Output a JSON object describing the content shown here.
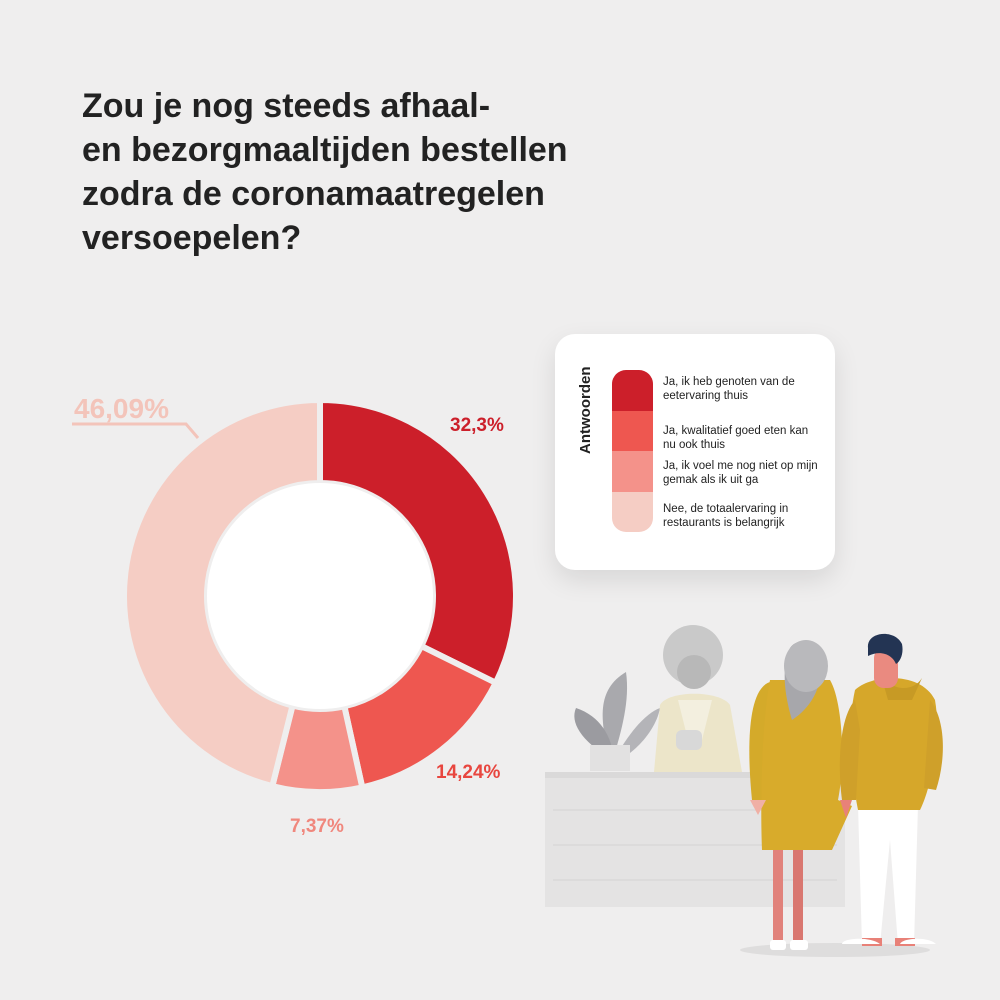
{
  "title_lines": [
    "Zou je nog steeds afhaal-",
    "en bezorgmaaltijden bestellen",
    "zodra de coronamaatregelen",
    "versoepelen?"
  ],
  "legend": {
    "heading": "Antwoorden",
    "items": [
      {
        "text": "Ja, ik heb genoten van de eetervaring thuis",
        "color": "#cc1f2a"
      },
      {
        "text": "Ja, kwalitatief goed eten kan nu ook thuis",
        "color": "#ee5750"
      },
      {
        "text": "Ja, ik voel me nog niet op mijn gemak als ik uit ga",
        "color": "#f4928a"
      },
      {
        "text": "Nee, de totaalervaring in restaurants is belangrijk",
        "color": "#f5cdc4"
      }
    ]
  },
  "chart_data": {
    "type": "pie",
    "variant": "donut",
    "slices": [
      {
        "label": "Ja, ik heb genoten van de eetervaring thuis",
        "value": 32.3,
        "display": "32,3%",
        "color": "#cc1f2a",
        "label_color": "#cc1f2a"
      },
      {
        "label": "Ja, kwalitatief goed eten kan nu ook thuis",
        "value": 14.24,
        "display": "14,24%",
        "color": "#ee5750",
        "label_color": "#e8463f"
      },
      {
        "label": "Ja, ik voel me nog niet op mijn gemak als ik uit ga",
        "value": 7.37,
        "display": "7,37%",
        "color": "#f4928a",
        "label_color": "#f0877d"
      },
      {
        "label": "Nee, de totaalervaring in restaurants is belangrijk",
        "value": 46.09,
        "display": "46,09%",
        "color": "#f5cdc4",
        "label_color": "#f3c4ba"
      }
    ]
  }
}
